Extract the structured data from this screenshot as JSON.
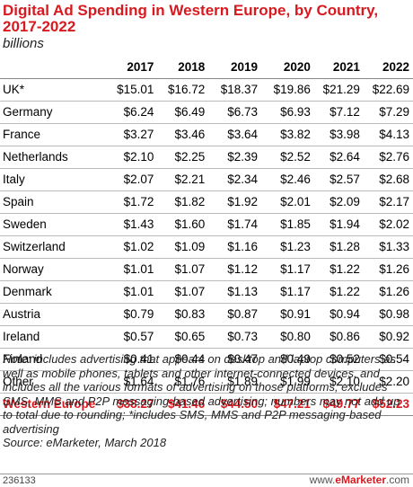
{
  "chart_data": {
    "type": "table",
    "title": "Digital Ad Spending in Western Europe, by Country, 2017-2022",
    "subtitle": "billions",
    "columns": [
      "2017",
      "2018",
      "2019",
      "2020",
      "2021",
      "2022"
    ],
    "rows": [
      {
        "label": "UK*",
        "values": [
          "$15.01",
          "$16.72",
          "$18.37",
          "$19.86",
          "$21.29",
          "$22.69"
        ]
      },
      {
        "label": "Germany",
        "values": [
          "$6.24",
          "$6.49",
          "$6.73",
          "$6.93",
          "$7.12",
          "$7.29"
        ]
      },
      {
        "label": "France",
        "values": [
          "$3.27",
          "$3.46",
          "$3.64",
          "$3.82",
          "$3.98",
          "$4.13"
        ]
      },
      {
        "label": "Netherlands",
        "values": [
          "$2.10",
          "$2.25",
          "$2.39",
          "$2.52",
          "$2.64",
          "$2.76"
        ]
      },
      {
        "label": "Italy",
        "values": [
          "$2.07",
          "$2.21",
          "$2.34",
          "$2.46",
          "$2.57",
          "$2.68"
        ]
      },
      {
        "label": "Spain",
        "values": [
          "$1.72",
          "$1.82",
          "$1.92",
          "$2.01",
          "$2.09",
          "$2.17"
        ]
      },
      {
        "label": "Sweden",
        "values": [
          "$1.43",
          "$1.60",
          "$1.74",
          "$1.85",
          "$1.94",
          "$2.02"
        ]
      },
      {
        "label": "Switzerland",
        "values": [
          "$1.02",
          "$1.09",
          "$1.16",
          "$1.23",
          "$1.28",
          "$1.33"
        ]
      },
      {
        "label": "Norway",
        "values": [
          "$1.01",
          "$1.07",
          "$1.12",
          "$1.17",
          "$1.22",
          "$1.26"
        ]
      },
      {
        "label": "Denmark",
        "values": [
          "$1.01",
          "$1.07",
          "$1.13",
          "$1.17",
          "$1.22",
          "$1.26"
        ]
      },
      {
        "label": "Austria",
        "values": [
          "$0.79",
          "$0.83",
          "$0.87",
          "$0.91",
          "$0.94",
          "$0.98"
        ]
      },
      {
        "label": "Ireland",
        "values": [
          "$0.57",
          "$0.65",
          "$0.73",
          "$0.80",
          "$0.86",
          "$0.92"
        ]
      },
      {
        "label": "Finland",
        "values": [
          "$0.41",
          "$0.44",
          "$0.47",
          "$0.49",
          "$0.52",
          "$0.54"
        ]
      },
      {
        "label": "Other",
        "values": [
          "$1.64",
          "$1.76",
          "$1.89",
          "$1.99",
          "$2.10",
          "$2.20"
        ]
      }
    ],
    "total": {
      "label": "Western Europe",
      "values": [
        "$38.27",
        "$41.46",
        "$44.50",
        "$47.21",
        "$49.77",
        "$52.23"
      ]
    },
    "note": "Note: includes advertising that appears on desktop and laptop computers as well as mobile phones, tablets and other internet-connected devices, and includes all the various formats of advertising on those platforms; excludes SMS, MMS and P2P messaging-based advertising; numbers may not add up to total due to rounding; *includes SMS, MMS and P2P messaging-based advertising",
    "source": "Source: eMarketer, March 2018"
  },
  "footer": {
    "chart_id": "236133",
    "site_prefix": "www.",
    "site_brand": "eMarketer",
    "site_suffix": ".com"
  },
  "colors": {
    "accent": "#d71a20"
  }
}
